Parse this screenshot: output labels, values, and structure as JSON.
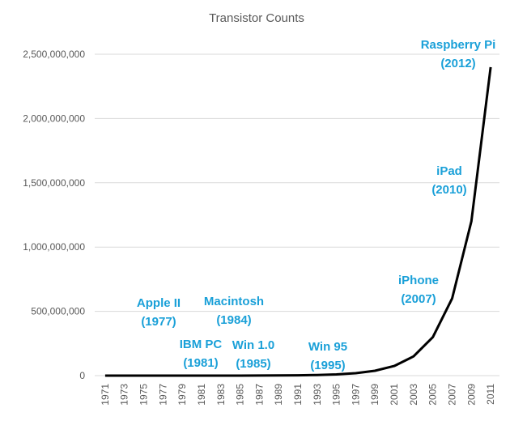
{
  "chart_data": {
    "type": "line",
    "title": "Transistor Counts",
    "xlabel": "",
    "ylabel": "",
    "categories": [
      "1971",
      "1973",
      "1975",
      "1977",
      "1979",
      "1981",
      "1983",
      "1985",
      "1987",
      "1989",
      "1991",
      "1993",
      "1995",
      "1997",
      "1999",
      "2001",
      "2003",
      "2005",
      "2007",
      "2009",
      "2011"
    ],
    "series": [
      {
        "values": [
          2300,
          4600,
          9200,
          18300,
          36600,
          73200,
          146000,
          293000,
          586000,
          1170000,
          2340000,
          4690000,
          9380000,
          18750000,
          37500000,
          75000000,
          150000000,
          300000000,
          600000000,
          1200000000,
          2400000000
        ]
      }
    ],
    "ylim": [
      0,
      2500000000
    ],
    "yticks": [
      0,
      500000000,
      1000000000,
      1500000000,
      2000000000,
      2500000000
    ],
    "ytick_labels": [
      "0",
      "500,000,000",
      "1,000,000,000",
      "1,500,000,000",
      "2,000,000,000",
      "2,500,000,000"
    ],
    "grid": true,
    "line_color": "#000000",
    "annotation_color": "#1AA0D8",
    "annotations": [
      {
        "name": "Apple II",
        "year": "(1977)"
      },
      {
        "name": "Macintosh",
        "year": "(1984)"
      },
      {
        "name": "IBM PC",
        "year": "(1981)"
      },
      {
        "name": "Win 1.0",
        "year": "(1985)"
      },
      {
        "name": "Win 95",
        "year": "(1995)"
      },
      {
        "name": "iPhone",
        "year": "(2007)"
      },
      {
        "name": "iPad",
        "year": "(2010)"
      },
      {
        "name": "Raspberry Pi",
        "year": "(2012)"
      }
    ]
  }
}
